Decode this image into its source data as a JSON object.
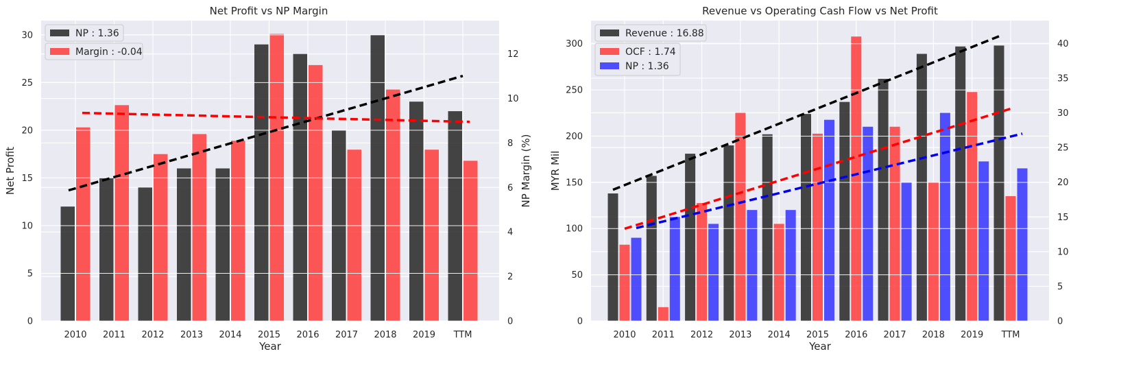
{
  "colors": {
    "background": "#eaeaf2",
    "grid": "#ffffff",
    "np": "#262626",
    "margin": "#ff3b3b",
    "ocf": "#ff3b3b",
    "np_blue": "#3333ff",
    "trend_black": "#000000",
    "trend_red": "#ff0000",
    "trend_blue": "#0000ee"
  },
  "chart_data": [
    {
      "type": "bar",
      "title": "Net Profit vs NP Margin",
      "xlabel": "Year",
      "ylabel": "Net Profit",
      "y2label": "NP Margin (%)",
      "categories": [
        "2010",
        "2011",
        "2012",
        "2013",
        "2014",
        "2015",
        "2016",
        "2017",
        "2018",
        "2019",
        "TTM"
      ],
      "ylim": [
        0,
        31.5
      ],
      "y2lim": [
        0,
        13.5
      ],
      "yticks": [
        "0",
        "5",
        "10",
        "15",
        "20",
        "25",
        "30"
      ],
      "y2ticks": [
        "0",
        "2",
        "4",
        "6",
        "8",
        "10",
        "12"
      ],
      "grid": true,
      "legend_position": "top-left",
      "series": [
        {
          "name": "NP",
          "legend": "NP : 1.36",
          "axis": "left",
          "color": "#262626",
          "values": [
            12,
            15,
            14,
            16,
            16,
            29,
            28,
            20,
            30,
            23,
            22
          ],
          "trend": [
            13.7,
            25.7
          ]
        },
        {
          "name": "Margin",
          "legend": "Margin : -0.04",
          "axis": "right",
          "color": "#ff3b3b",
          "values": [
            8.7,
            9.7,
            7.5,
            8.4,
            8.1,
            12.9,
            11.5,
            7.7,
            10.4,
            7.7,
            7.2
          ],
          "trend": [
            9.35,
            8.95
          ]
        }
      ]
    },
    {
      "type": "bar",
      "title": "Revenue vs Operating Cash Flow vs Net Profit",
      "xlabel": "Year",
      "ylabel": "MYR Mil",
      "categories": [
        "2010",
        "2011",
        "2012",
        "2013",
        "2014",
        "2015",
        "2016",
        "2017",
        "2018",
        "2019",
        "TTM"
      ],
      "ylim": [
        0,
        325
      ],
      "y2lim": [
        0,
        43.3
      ],
      "yticks": [
        "0",
        "50",
        "100",
        "150",
        "200",
        "250",
        "300"
      ],
      "y2ticks": [
        "0",
        "5",
        "10",
        "15",
        "20",
        "25",
        "30",
        "35",
        "40"
      ],
      "grid": true,
      "legend_position": "top-left",
      "series": [
        {
          "name": "Revenue",
          "legend": "Revenue : 16.88",
          "axis": "left",
          "color": "#262626",
          "values": [
            138,
            157,
            181,
            190,
            202,
            224,
            237,
            262,
            289,
            297,
            298
          ],
          "trend": [
            142,
            308
          ]
        },
        {
          "name": "OCF",
          "legend": "OCF : 1.74",
          "axis": "right",
          "color": "#ff3b3b",
          "values": [
            11,
            2,
            17,
            30,
            14,
            27,
            41,
            28,
            20,
            33,
            18
          ],
          "trend": [
            13.3,
            30.6
          ]
        },
        {
          "name": "NP",
          "legend": "NP : 1.36",
          "axis": "right",
          "color": "#3333ff",
          "values": [
            12,
            15,
            14,
            16,
            16,
            29,
            28,
            20,
            30,
            23,
            22
          ],
          "trend": [
            13.4,
            27.0
          ]
        }
      ]
    }
  ]
}
